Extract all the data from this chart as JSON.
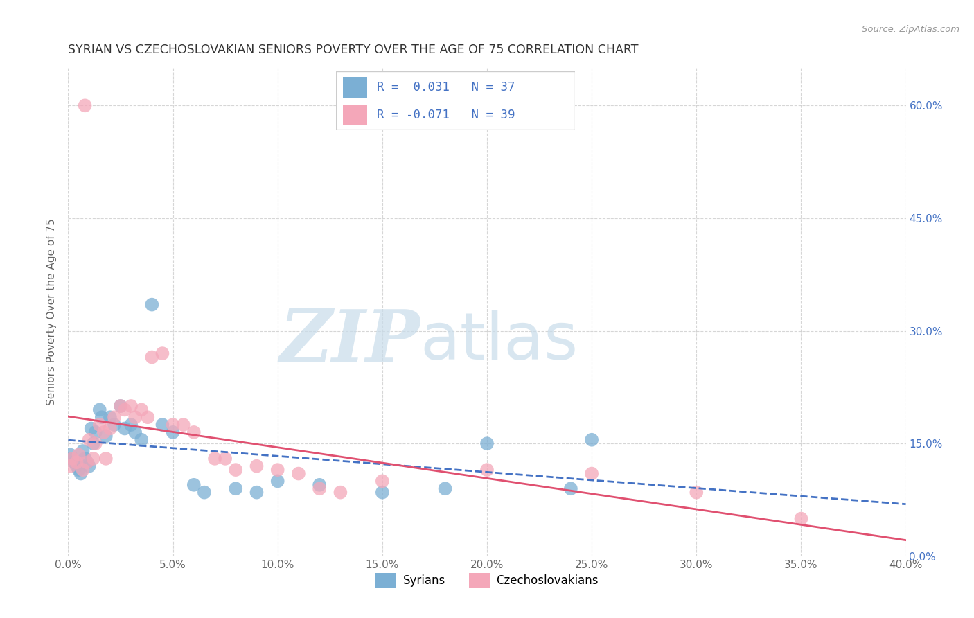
{
  "title": "SYRIAN VS CZECHOSLOVAKIAN SENIORS POVERTY OVER THE AGE OF 75 CORRELATION CHART",
  "source": "Source: ZipAtlas.com",
  "ylabel": "Seniors Poverty Over the Age of 75",
  "xlim": [
    0.0,
    0.4
  ],
  "ylim": [
    0.0,
    0.65
  ],
  "xticks": [
    0.0,
    0.05,
    0.1,
    0.15,
    0.2,
    0.25,
    0.3,
    0.35,
    0.4
  ],
  "yticks": [
    0.0,
    0.15,
    0.3,
    0.45,
    0.6
  ],
  "background_color": "#ffffff",
  "grid_color": "#cccccc",
  "legend_R_syrian": "0.031",
  "legend_N_syrian": "37",
  "legend_R_czech": "-0.071",
  "legend_N_czech": "39",
  "syrian_color": "#7bafd4",
  "czech_color": "#f4a7b9",
  "trend_syrian_color": "#4472c4",
  "trend_czech_color": "#e05070",
  "legend_text_color": "#4472c4",
  "syrians_x": [
    0.001,
    0.002,
    0.003,
    0.004,
    0.005,
    0.006,
    0.007,
    0.008,
    0.009,
    0.01,
    0.011,
    0.012,
    0.013,
    0.015,
    0.016,
    0.018,
    0.02,
    0.022,
    0.025,
    0.027,
    0.03,
    0.032,
    0.035,
    0.04,
    0.045,
    0.05,
    0.06,
    0.065,
    0.08,
    0.09,
    0.1,
    0.12,
    0.15,
    0.18,
    0.2,
    0.24,
    0.25
  ],
  "syrians_y": [
    0.135,
    0.13,
    0.125,
    0.12,
    0.115,
    0.11,
    0.14,
    0.13,
    0.125,
    0.12,
    0.17,
    0.15,
    0.165,
    0.195,
    0.185,
    0.16,
    0.185,
    0.175,
    0.2,
    0.17,
    0.175,
    0.165,
    0.155,
    0.335,
    0.175,
    0.165,
    0.095,
    0.085,
    0.09,
    0.085,
    0.1,
    0.095,
    0.085,
    0.09,
    0.15,
    0.09,
    0.155
  ],
  "czechs_x": [
    0.001,
    0.002,
    0.004,
    0.005,
    0.007,
    0.008,
    0.009,
    0.01,
    0.012,
    0.013,
    0.015,
    0.017,
    0.018,
    0.02,
    0.022,
    0.025,
    0.027,
    0.03,
    0.032,
    0.035,
    0.038,
    0.04,
    0.045,
    0.05,
    0.055,
    0.06,
    0.07,
    0.075,
    0.08,
    0.09,
    0.1,
    0.11,
    0.12,
    0.13,
    0.15,
    0.2,
    0.25,
    0.3,
    0.35
  ],
  "czechs_y": [
    0.12,
    0.13,
    0.125,
    0.135,
    0.115,
    0.6,
    0.125,
    0.155,
    0.13,
    0.15,
    0.175,
    0.165,
    0.13,
    0.17,
    0.185,
    0.2,
    0.195,
    0.2,
    0.185,
    0.195,
    0.185,
    0.265,
    0.27,
    0.175,
    0.175,
    0.165,
    0.13,
    0.13,
    0.115,
    0.12,
    0.115,
    0.11,
    0.09,
    0.085,
    0.1,
    0.115,
    0.11,
    0.085,
    0.05
  ]
}
